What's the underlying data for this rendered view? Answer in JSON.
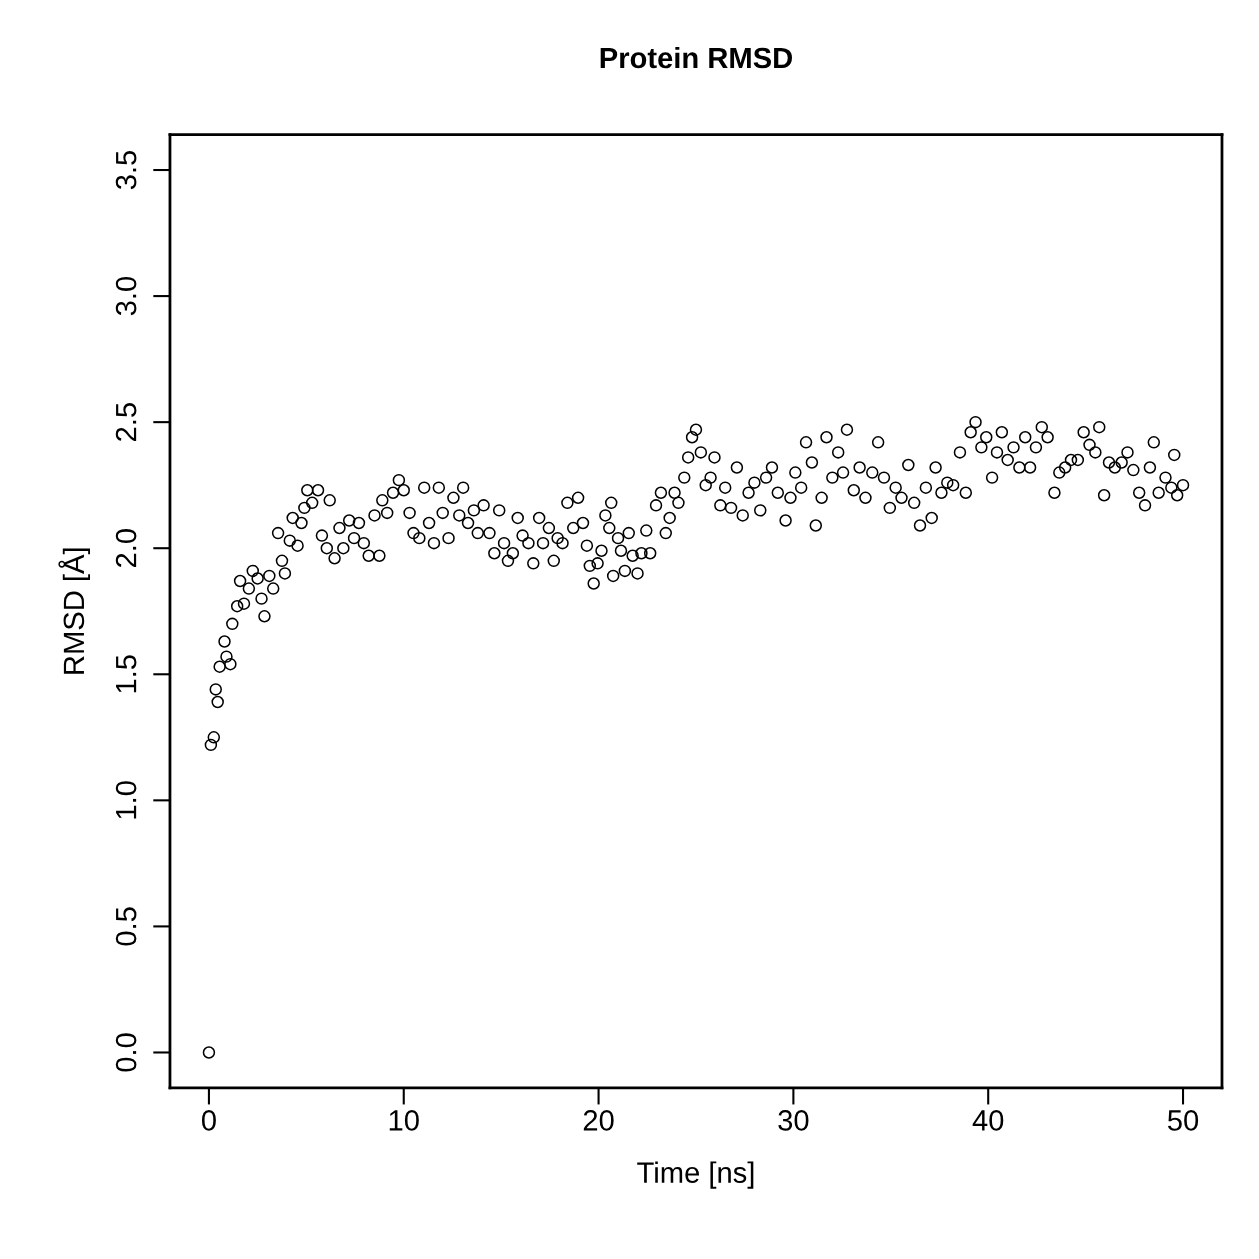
{
  "chart_data": {
    "type": "scatter",
    "title": "Protein RMSD",
    "xlabel": "Time [ns]",
    "ylabel": "RMSD [Å]",
    "xlim": [
      -2,
      52
    ],
    "xticks": [
      0,
      10,
      20,
      30,
      40,
      50
    ],
    "ylim": [
      -0.14,
      3.64
    ],
    "yticks": [
      {
        "value": 0,
        "label": "0.0"
      },
      0.5,
      {
        "value": 1,
        "label": "1.0"
      },
      1.5,
      {
        "value": 2,
        "label": "2.0"
      },
      2.5,
      {
        "value": 3,
        "label": "3.0"
      },
      3.5
    ],
    "grid": false,
    "legend": false,
    "marker": "circle",
    "series": [
      {
        "color": "#000000",
        "x": [
          0,
          0.1,
          0.25,
          0.35,
          0.45,
          0.55,
          0.8,
          0.9,
          1.1,
          1.2,
          1.45,
          1.6,
          1.8,
          2.05,
          2.25,
          2.5,
          2.7,
          2.85,
          3.1,
          3.3,
          3.55,
          3.75,
          3.9,
          4.15,
          4.3,
          4.55,
          4.75,
          4.9,
          5.05,
          5.3,
          5.6,
          5.8,
          6.05,
          6.2,
          6.45,
          6.7,
          6.9,
          7.2,
          7.45,
          7.7,
          7.95,
          8.2,
          8.5,
          8.75,
          8.9,
          9.15,
          9.45,
          9.75,
          10.0,
          10.3,
          10.5,
          10.8,
          11.05,
          11.3,
          11.55,
          11.8,
          12.0,
          12.3,
          12.55,
          12.85,
          13.05,
          13.3,
          13.6,
          13.8,
          14.1,
          14.4,
          14.65,
          14.9,
          15.15,
          15.35,
          15.6,
          15.85,
          16.1,
          16.4,
          16.65,
          16.95,
          17.15,
          17.45,
          17.7,
          17.9,
          18.15,
          18.4,
          18.7,
          18.95,
          19.2,
          19.4,
          19.55,
          19.75,
          19.95,
          20.15,
          20.35,
          20.55,
          20.65,
          20.75,
          21.0,
          21.15,
          21.35,
          21.55,
          21.75,
          22.0,
          22.2,
          22.45,
          22.65,
          22.95,
          23.2,
          23.45,
          23.65,
          23.9,
          24.1,
          24.4,
          24.6,
          24.8,
          25.0,
          25.25,
          25.5,
          25.75,
          25.95,
          26.25,
          26.5,
          26.8,
          27.1,
          27.4,
          27.7,
          28.0,
          28.3,
          28.6,
          28.9,
          29.2,
          29.6,
          29.85,
          30.1,
          30.4,
          30.65,
          30.95,
          31.15,
          31.45,
          31.7,
          32.0,
          32.3,
          32.55,
          32.75,
          33.1,
          33.4,
          33.7,
          34.05,
          34.35,
          34.65,
          34.95,
          35.25,
          35.55,
          35.9,
          36.2,
          36.5,
          36.8,
          37.1,
          37.3,
          37.6,
          37.9,
          38.2,
          38.55,
          38.85,
          39.1,
          39.35,
          39.65,
          39.9,
          40.2,
          40.45,
          40.7,
          41.0,
          41.3,
          41.6,
          41.9,
          42.15,
          42.45,
          42.75,
          43.05,
          43.4,
          43.65,
          43.95,
          44.25,
          44.6,
          44.9,
          45.2,
          45.5,
          45.7,
          45.95,
          46.2,
          46.5,
          46.85,
          47.15,
          47.45,
          47.75,
          48.05,
          48.3,
          48.5,
          48.75,
          49.1,
          49.4,
          49.55,
          49.7,
          50.0
        ],
        "values": [
          0.0,
          1.22,
          1.25,
          1.44,
          1.39,
          1.53,
          1.63,
          1.57,
          1.54,
          1.7,
          1.77,
          1.87,
          1.78,
          1.84,
          1.91,
          1.88,
          1.8,
          1.73,
          1.89,
          1.84,
          2.06,
          1.95,
          1.9,
          2.03,
          2.12,
          2.01,
          2.1,
          2.16,
          2.23,
          2.18,
          2.23,
          2.05,
          2.0,
          2.19,
          1.96,
          2.08,
          2.0,
          2.11,
          2.04,
          2.1,
          2.02,
          1.97,
          2.13,
          1.97,
          2.19,
          2.14,
          2.22,
          2.27,
          2.23,
          2.14,
          2.06,
          2.04,
          2.24,
          2.1,
          2.02,
          2.24,
          2.14,
          2.04,
          2.2,
          2.13,
          2.24,
          2.1,
          2.15,
          2.06,
          2.17,
          2.06,
          1.98,
          2.15,
          2.02,
          1.95,
          1.98,
          2.12,
          2.05,
          2.02,
          1.94,
          2.12,
          2.02,
          2.08,
          1.95,
          2.04,
          2.02,
          2.18,
          2.08,
          2.2,
          2.1,
          2.01,
          1.93,
          1.86,
          1.94,
          1.99,
          2.13,
          2.08,
          2.18,
          1.89,
          2.04,
          1.99,
          1.91,
          2.06,
          1.97,
          1.9,
          1.98,
          2.07,
          1.98,
          2.17,
          2.22,
          2.06,
          2.12,
          2.22,
          2.18,
          2.28,
          2.36,
          2.44,
          2.47,
          2.38,
          2.25,
          2.28,
          2.36,
          2.17,
          2.24,
          2.16,
          2.32,
          2.13,
          2.22,
          2.26,
          2.15,
          2.28,
          2.32,
          2.22,
          2.11,
          2.2,
          2.3,
          2.24,
          2.42,
          2.34,
          2.09,
          2.2,
          2.44,
          2.28,
          2.38,
          2.3,
          2.47,
          2.23,
          2.32,
          2.2,
          2.3,
          2.42,
          2.28,
          2.16,
          2.24,
          2.2,
          2.33,
          2.18,
          2.09,
          2.24,
          2.12,
          2.32,
          2.22,
          2.26,
          2.25,
          2.38,
          2.22,
          2.46,
          2.5,
          2.4,
          2.44,
          2.28,
          2.38,
          2.46,
          2.35,
          2.4,
          2.32,
          2.44,
          2.32,
          2.4,
          2.48,
          2.44,
          2.22,
          2.3,
          2.32,
          2.35,
          2.35,
          2.46,
          2.41,
          2.38,
          2.48,
          2.21,
          2.34,
          2.32,
          2.34,
          2.38,
          2.31,
          2.22,
          2.17,
          2.32,
          2.42,
          2.22,
          2.28,
          2.24,
          2.37,
          2.21,
          2.25
        ]
      }
    ]
  }
}
